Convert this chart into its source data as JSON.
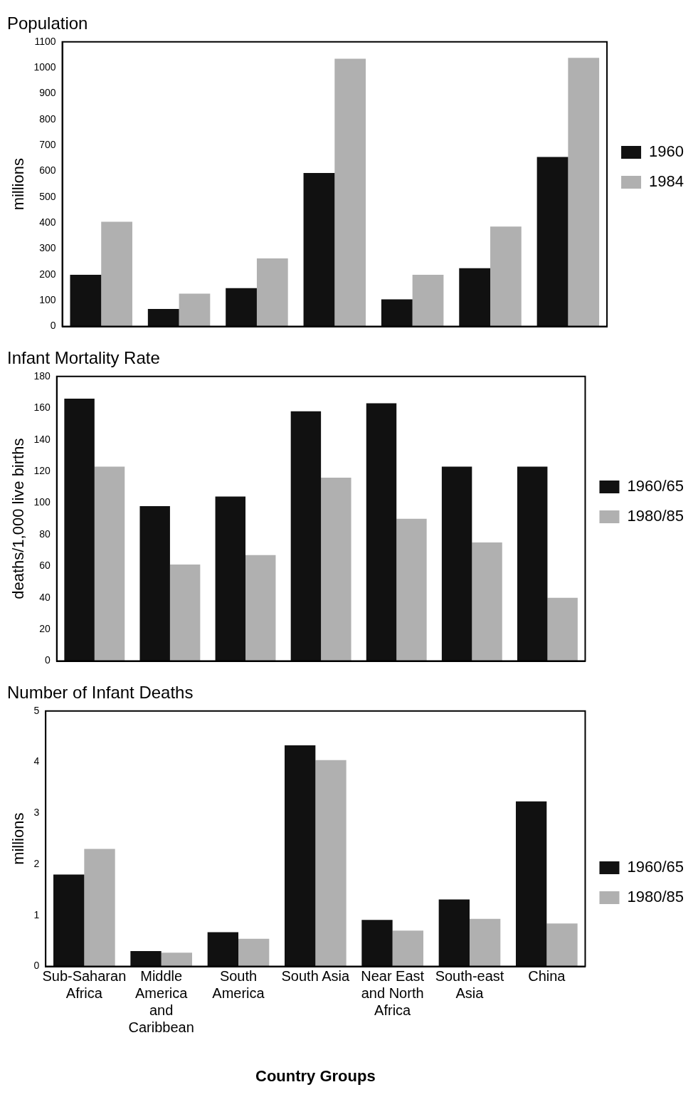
{
  "chart_data": [
    {
      "type": "bar",
      "title": "Population",
      "ylabel": "millions",
      "categories": [
        null,
        null,
        null,
        null,
        null,
        null,
        null
      ],
      "series": [
        {
          "name": "1960",
          "color": "#111111",
          "values": [
            200,
            68,
            148,
            593,
            105,
            225,
            655
          ]
        },
        {
          "name": "1984",
          "color": "#b0b0b0",
          "values": [
            405,
            127,
            263,
            1035,
            200,
            386,
            1038
          ]
        }
      ],
      "ylim": [
        0,
        1100
      ],
      "yticks": [
        0,
        100,
        200,
        300,
        400,
        500,
        600,
        700,
        800,
        900,
        1000,
        1100
      ],
      "grid": false,
      "legend": "right",
      "tick_labels": "y"
    },
    {
      "type": "bar",
      "title": "Infant Mortality Rate",
      "ylabel": "deaths/1,000 live births",
      "categories": [
        null,
        null,
        null,
        null,
        null,
        null,
        null
      ],
      "series": [
        {
          "name": "1960/65",
          "color": "#111111",
          "values": [
            166,
            98,
            104,
            158,
            163,
            123,
            123
          ]
        },
        {
          "name": "1980/85",
          "color": "#b0b0b0",
          "values": [
            123,
            61,
            67,
            116,
            90,
            75,
            40
          ]
        }
      ],
      "ylim": [
        0,
        180
      ],
      "yticks": [
        0,
        20,
        40,
        60,
        80,
        100,
        120,
        140,
        160,
        180
      ],
      "grid": false,
      "legend": "right",
      "tick_labels": "y"
    },
    {
      "type": "bar",
      "title": "Number of Infant Deaths",
      "ylabel": "millions",
      "xlabel": "Country Groups",
      "categories": [
        "Sub-Saharan Africa",
        "Middle America and Caribbean",
        "South America",
        "South Asia",
        "Near East and North Africa",
        "South-east Asia",
        "China"
      ],
      "series": [
        {
          "name": "1960/65",
          "color": "#111111",
          "values": [
            1.8,
            0.3,
            0.67,
            4.33,
            0.91,
            1.31,
            3.23
          ]
        },
        {
          "name": "1980/85",
          "color": "#b0b0b0",
          "values": [
            2.3,
            0.27,
            0.54,
            4.04,
            0.7,
            0.93,
            0.84
          ]
        }
      ],
      "ylim": [
        0,
        5
      ],
      "yticks": [
        0,
        1,
        2,
        3,
        4,
        5
      ],
      "grid": false,
      "legend": "right"
    }
  ]
}
